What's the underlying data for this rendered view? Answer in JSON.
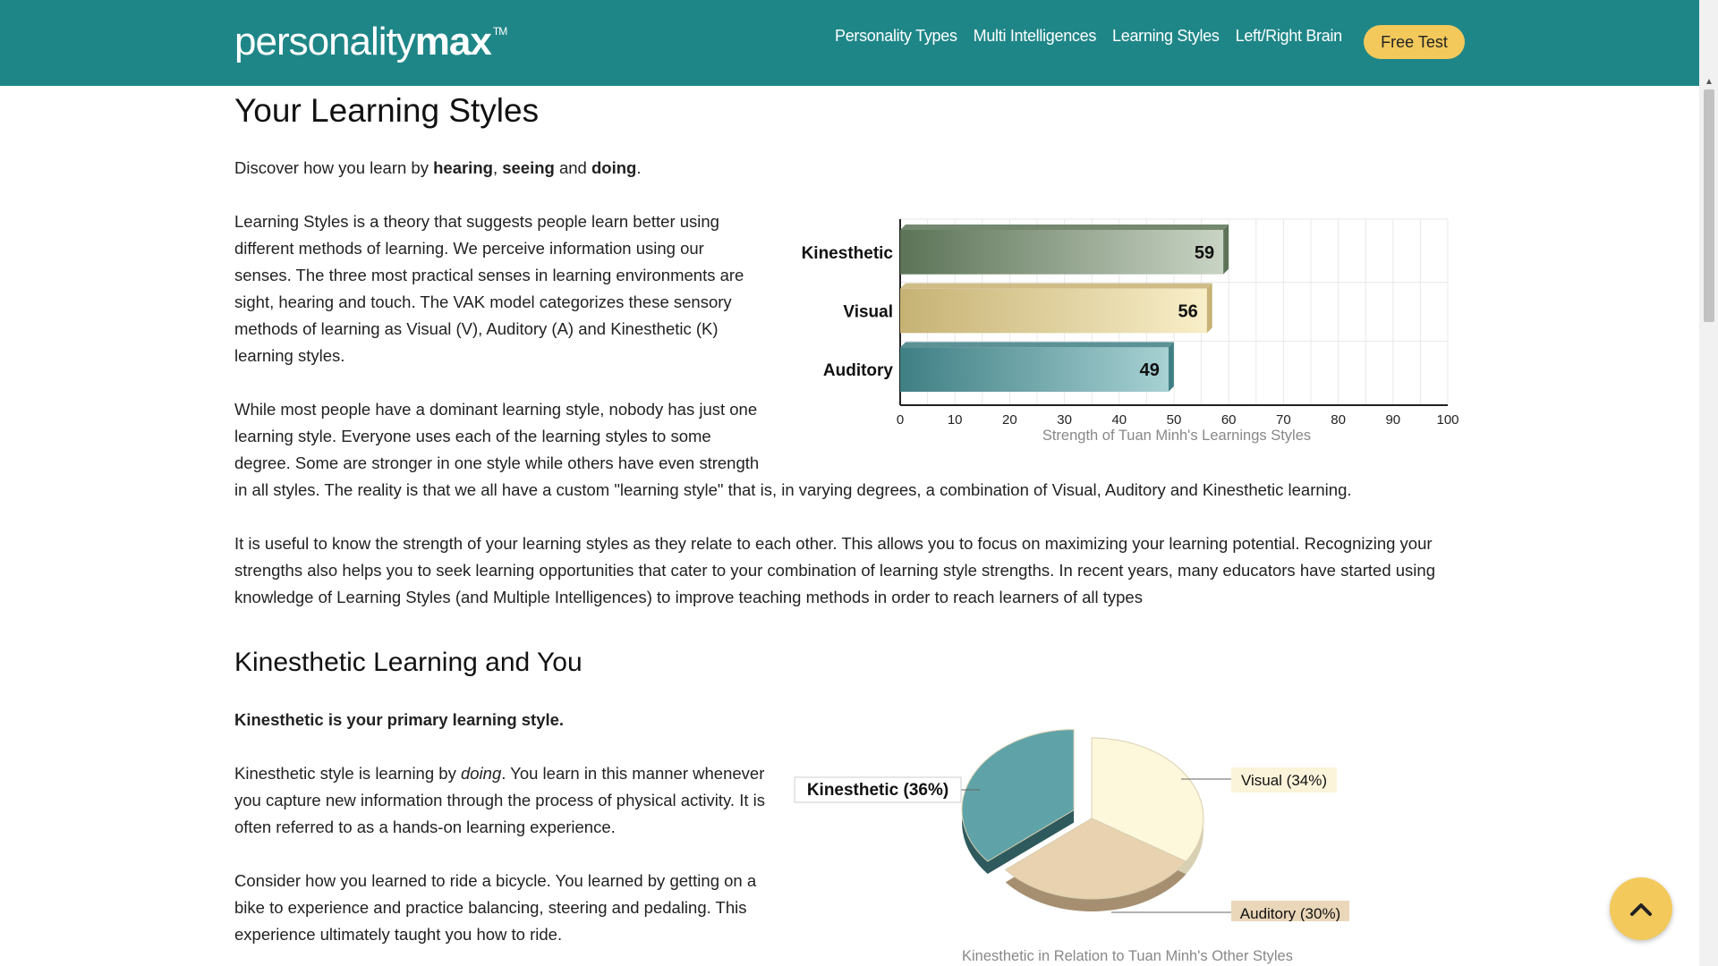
{
  "header": {
    "logo_thin": "personality",
    "logo_bold": "max",
    "logo_tm": "TM",
    "nav": [
      "Personality Types",
      "Multi Intelligences",
      "Learning Styles",
      "Left/Right Brain"
    ],
    "cta": "Free Test"
  },
  "page": {
    "title": "Your Learning Styles",
    "intro_pre": "Discover how you learn by ",
    "intro_b1": "hearing",
    "intro_sep1": ", ",
    "intro_b2": "seeing",
    "intro_sep2": " and ",
    "intro_b3": "doing",
    "intro_end": ".",
    "para1_lines": [
      "Learning Styles is a theory that suggests people learn better using",
      "different methods of learning. We perceive information using our",
      "senses. The three most practical senses in learning environments are",
      "sight, hearing and touch. The VAK model categorizes these sensory",
      "methods of learning as Visual (V), Auditory (A) and Kinesthetic (K)",
      "learning styles."
    ],
    "para2_lines": [
      "While most people have a dominant learning style, nobody has just one",
      "learning style. Everyone uses each of the learning styles to some",
      "degree. Some are stronger in one style while others have even strength",
      "in all styles. The reality is that we all have a custom \"learning style\" that is, in varying degrees, a combination of Visual, Auditory and Kinesthetic learning."
    ],
    "para3_lines": [
      "It is useful to know the strength of your learning styles as they relate to each other. This allows you to focus on maximizing your learning potential. Recognizing your",
      "strengths also helps you to seek learning opportunities that cater to your combination of learning style strengths. In recent years, many educators have started using",
      "knowledge of Learning Styles (and Multiple Intelligences) to improve teaching methods in order to reach learners of all types"
    ],
    "section2_title": "Kinesthetic Learning and You",
    "primary": "Kinesthetic is your primary learning style.",
    "para4_pre": "Kinesthetic style is learning by ",
    "para4_em": "doing",
    "para4_rest1": ". You learn in this manner whenever",
    "para4_lines": [
      "you capture new information through the process of physical activity. It is",
      "often referred to as a hands-on learning experience."
    ],
    "para5_lines": [
      "Consider how you learned to ride a bicycle. You learned by getting on a",
      "bike to experience and practice balancing, steering and pedaling. This",
      "experience ultimately taught you how to ride."
    ]
  },
  "chart_data": [
    {
      "type": "bar",
      "orientation": "horizontal",
      "categories": [
        "Kinesthetic",
        "Visual",
        "Auditory"
      ],
      "values": [
        59,
        56,
        49
      ],
      "xlim": [
        0,
        100
      ],
      "xticks": [
        "0",
        "10",
        "20",
        "30",
        "40",
        "50",
        "60",
        "70",
        "80",
        "90",
        "100"
      ],
      "caption": "Strength of Tuan Minh's Learnings Styles",
      "colors": [
        "#6d8466",
        "#d8c68c",
        "#4d8f93"
      ]
    },
    {
      "type": "pie",
      "labels": [
        "Kinesthetic (36%)",
        "Visual (34%)",
        "Auditory (30%)"
      ],
      "values": [
        36,
        34,
        30
      ],
      "caption": "Kinesthetic in Relation to Tuan Minh's Other Styles",
      "colors": [
        "#5fa3a8",
        "#fdf7dc",
        "#e8d2b0"
      ]
    }
  ],
  "scroll_top_icon": "chevron-up-icon"
}
